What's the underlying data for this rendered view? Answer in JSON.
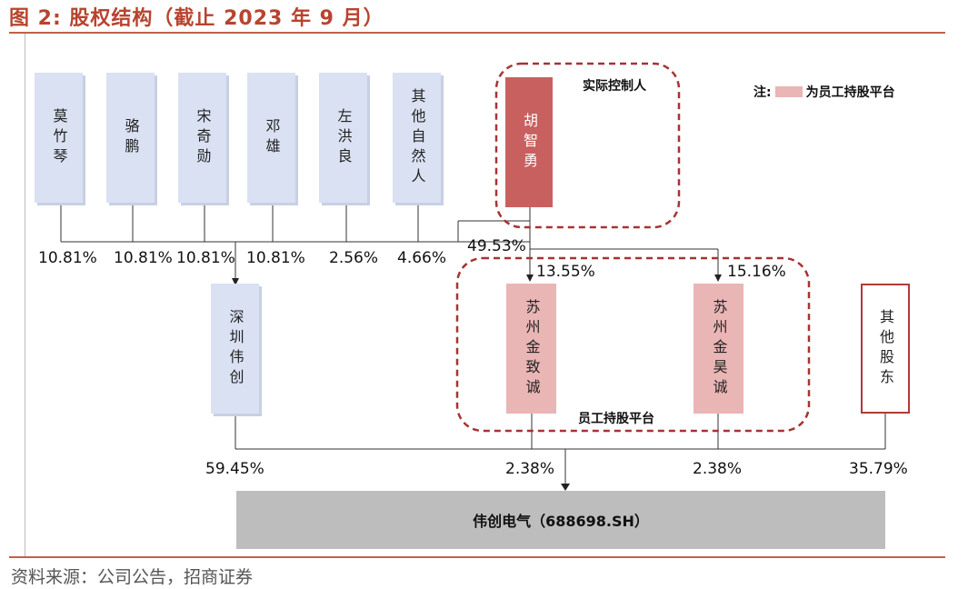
{
  "figure": {
    "title": "图 2: 股权结构（截止 2023 年 9 月）",
    "source": "资料来源：公司公告，招商证券"
  },
  "legend": {
    "prefix": "注:",
    "text": "为员工持股平台",
    "swatch_color": "#eab5b5"
  },
  "groups": {
    "controller_label": "实际控制人",
    "platform_label": "员工持股平台"
  },
  "persons": [
    {
      "name": "莫竹琴",
      "pct": "10.81%"
    },
    {
      "name": "骆鹏",
      "pct": "10.81%"
    },
    {
      "name": "宋奇勋",
      "pct": "10.81%"
    },
    {
      "name": "邓雄",
      "pct": "10.81%"
    },
    {
      "name": "左洪良",
      "pct": "2.56%"
    },
    {
      "name": "其他自然人",
      "pct": "4.66%"
    }
  ],
  "controller": {
    "name": "胡智勇",
    "pct": "49.53%",
    "color": "#c86060"
  },
  "platforms": [
    {
      "name": "苏州金致诚",
      "controller_pct": "13.55%",
      "pct": "2.38%"
    },
    {
      "name": "苏州金昊诚",
      "controller_pct": "15.16%",
      "pct": "2.38%"
    }
  ],
  "shenzhen": {
    "name": "深圳伟创",
    "pct": "59.45%"
  },
  "other_holders": {
    "name": "其他股东",
    "pct": "35.79%"
  },
  "company": {
    "name": "伟创电气（688698.SH）"
  }
}
